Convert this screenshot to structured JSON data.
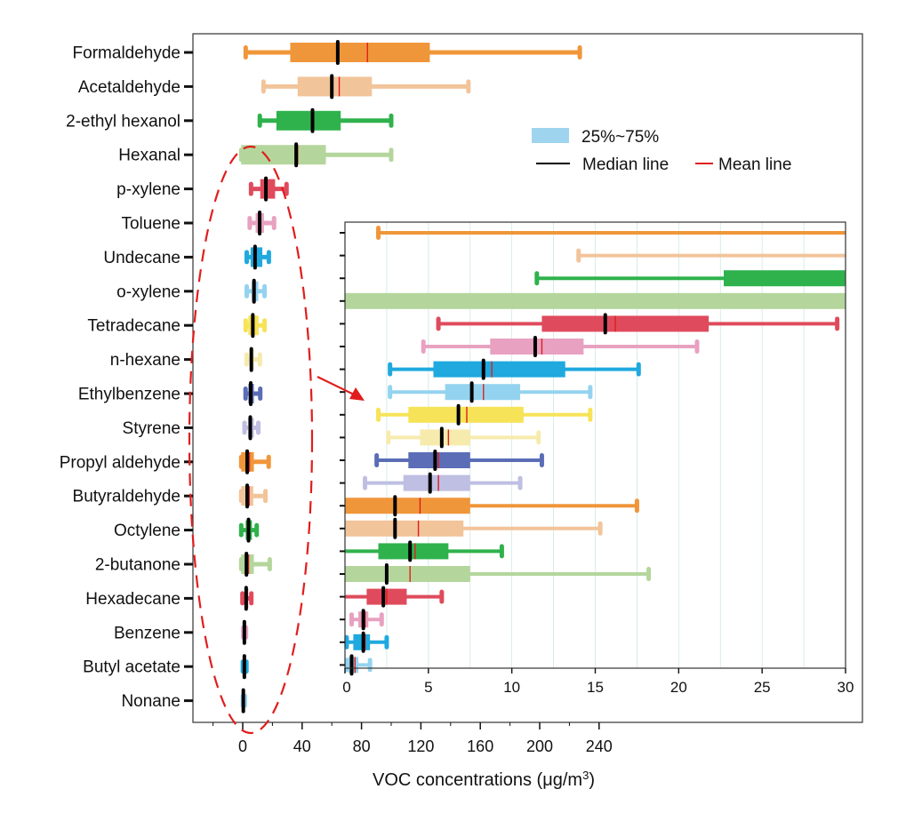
{
  "chart_data": {
    "type": "box",
    "xlabel_main": "VOC concentrations (μg/m",
    "xlabel_sup": "3",
    "xlabel_tail": ")",
    "xlim": [
      -15,
      245
    ],
    "xticks": [
      0,
      40,
      80,
      120,
      160,
      200,
      240
    ],
    "inset_xlim": [
      0,
      30
    ],
    "inset_xticks": [
      0,
      5,
      10,
      15,
      20,
      25,
      30
    ],
    "legend": {
      "box_label": "25%~75%",
      "median_label": "Median line",
      "mean_label": "Mean line",
      "box_color": "#9fd4ef",
      "median_color": "#000000",
      "mean_color": "#e11d1d"
    },
    "series": [
      {
        "name": "Formaldehyde",
        "color": "#f0963a",
        "whisker_low": 2,
        "q1": 32,
        "median": 64,
        "mean": 84,
        "q3": 126,
        "whisker_high": 227
      },
      {
        "name": "Acetaldehyde",
        "color": "#f2c49a",
        "whisker_low": 14,
        "q1": 37,
        "median": 60,
        "mean": 65,
        "q3": 87,
        "whisker_high": 152
      },
      {
        "name": "2-ethyl hexanol",
        "color": "#2fb24c",
        "whisker_low": 11.5,
        "q1": 22.7,
        "median": 47,
        "mean": 47.5,
        "q3": 66,
        "whisker_high": 100
      },
      {
        "name": "Hexanal",
        "color": "#b4d69c",
        "whisker_low": -1,
        "q1": -1,
        "median": 36,
        "mean": 37,
        "q3": 56,
        "whisker_high": 100
      },
      {
        "name": "p-xylene",
        "color": "#df4b5c",
        "whisker_low": 5.6,
        "q1": 11.8,
        "median": 15.6,
        "mean": 16.2,
        "q3": 21.8,
        "whisker_high": 29.5
      },
      {
        "name": "Toluene",
        "color": "#e8a1c1",
        "whisker_low": 4.7,
        "q1": 8.7,
        "median": 11.4,
        "mean": 11.8,
        "q3": 14.3,
        "whisker_high": 21.1
      },
      {
        "name": "Undecane",
        "color": "#1fa9df",
        "whisker_low": 2.7,
        "q1": 5.3,
        "median": 8.3,
        "mean": 8.8,
        "q3": 13.2,
        "whisker_high": 17.6
      },
      {
        "name": "o-xylene",
        "color": "#94d3ef",
        "whisker_low": 2.7,
        "q1": 6.0,
        "median": 7.6,
        "mean": 8.3,
        "q3": 10.5,
        "whisker_high": 14.7
      },
      {
        "name": "Tetradecane",
        "color": "#f7e358",
        "whisker_low": 2.0,
        "q1": 3.8,
        "median": 6.8,
        "mean": 7.3,
        "q3": 10.7,
        "whisker_high": 14.7
      },
      {
        "name": "n-hexane",
        "color": "#f6ebac",
        "whisker_low": 2.6,
        "q1": 4.5,
        "median": 5.8,
        "mean": 6.2,
        "q3": 7.5,
        "whisker_high": 11.6
      },
      {
        "name": "Ethylbenzene",
        "color": "#5a6db6",
        "whisker_low": 1.9,
        "q1": 3.8,
        "median": 5.4,
        "mean": 5.6,
        "q3": 7.5,
        "whisker_high": 11.8
      },
      {
        "name": "Styrene",
        "color": "#bebfe2",
        "whisker_low": 1.2,
        "q1": 3.5,
        "median": 5.1,
        "mean": 5.6,
        "q3": 7.5,
        "whisker_high": 10.5
      },
      {
        "name": "Propyl aldehyde",
        "color": "#f0963a",
        "whisker_low": -1,
        "q1": -1,
        "median": 3.0,
        "mean": 4.5,
        "q3": 7.5,
        "whisker_high": 17.5
      },
      {
        "name": "Butyraldehyde",
        "color": "#f2c49a",
        "whisker_low": -1,
        "q1": -1,
        "median": 3.0,
        "mean": 4.4,
        "q3": 7.1,
        "whisker_high": 15.3
      },
      {
        "name": "Octylene",
        "color": "#2fb24c",
        "whisker_low": -1,
        "q1": 2.0,
        "median": 3.9,
        "mean": 4.2,
        "q3": 6.2,
        "whisker_high": 9.4
      },
      {
        "name": "2-butanone",
        "color": "#b4d69c",
        "whisker_low": -1,
        "q1": -1,
        "median": 2.5,
        "mean": 3.9,
        "q3": 7.5,
        "whisker_high": 18.2
      },
      {
        "name": "Hexadecane",
        "color": "#df4b5c",
        "whisker_low": -0.2,
        "q1": 1.3,
        "median": 2.3,
        "mean": 2.5,
        "q3": 3.7,
        "whisker_high": 5.8
      },
      {
        "name": "Benzene",
        "color": "#e8a1c1",
        "whisker_low": 0.4,
        "q1": 0.8,
        "median": 1.1,
        "mean": 1.2,
        "q3": 1.4,
        "whisker_high": 2.2
      },
      {
        "name": "Butyl acetate",
        "color": "#1fa9df",
        "whisker_low": 0.1,
        "q1": 0.5,
        "median": 1.1,
        "mean": 1.2,
        "q3": 1.5,
        "whisker_high": 2.5
      },
      {
        "name": "Nonane",
        "color": "#94d3ef",
        "whisker_low": 0.1,
        "q1": 0.2,
        "median": 0.4,
        "mean": 0.6,
        "q3": 0.8,
        "whisker_high": 1.5
      }
    ]
  }
}
